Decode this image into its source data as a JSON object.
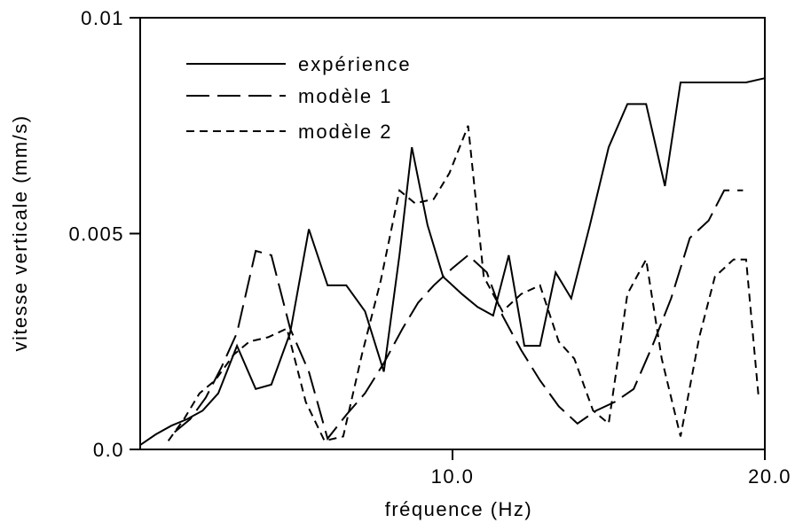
{
  "chart_data": {
    "type": "line",
    "xlabel": "fréquence (Hz)",
    "ylabel": "vitesse verticale (mm/s)",
    "xlim": [
      0.0,
      20.0
    ],
    "ylim": [
      0.0,
      0.01
    ],
    "x_ticks": [
      {
        "value": 10.0,
        "label": "10.0"
      },
      {
        "value": 20.0,
        "label": "20.0"
      }
    ],
    "y_ticks": [
      {
        "value": 0.0,
        "label": "0.0"
      },
      {
        "value": 0.005,
        "label": "0.005"
      },
      {
        "value": 0.01,
        "label": "0.01"
      }
    ],
    "grid": false,
    "legend_position": "top-left",
    "series": [
      {
        "name": "expérience",
        "dash": "solid",
        "x": [
          0.0,
          0.5,
          1.0,
          1.5,
          2.0,
          2.5,
          3.1,
          3.7,
          4.2,
          4.8,
          5.4,
          6.0,
          6.6,
          7.2,
          7.8,
          8.3,
          8.7,
          9.2,
          9.7,
          10.3,
          10.8,
          11.3,
          11.8,
          12.3,
          12.8,
          13.3,
          13.8,
          14.4,
          15.0,
          15.6,
          16.2,
          16.8,
          17.3,
          17.9,
          18.4,
          18.9,
          19.4,
          20.0
        ],
        "y": [
          0.0001,
          0.00035,
          0.00055,
          0.0007,
          0.0009,
          0.0013,
          0.0024,
          0.0014,
          0.0015,
          0.0027,
          0.0051,
          0.0038,
          0.0038,
          0.0032,
          0.0018,
          0.0045,
          0.007,
          0.0052,
          0.004,
          0.0036,
          0.0033,
          0.0031,
          0.0045,
          0.0024,
          0.0024,
          0.0041,
          0.0035,
          0.0052,
          0.007,
          0.008,
          0.008,
          0.0061,
          0.0085,
          0.0085,
          0.0085,
          0.0085,
          0.0085,
          0.0086
        ]
      },
      {
        "name": "modèle 1",
        "dash": "long",
        "x": [
          1.1,
          1.6,
          2.1,
          2.6,
          3.1,
          3.7,
          4.2,
          4.8,
          5.4,
          6.0,
          6.6,
          7.2,
          7.8,
          8.4,
          8.9,
          9.4,
          10.0,
          10.5,
          11.1,
          11.6,
          12.2,
          12.8,
          13.4,
          14.0,
          14.6,
          15.2,
          15.8,
          16.4,
          17.0,
          17.6,
          18.2,
          18.7,
          19.3
        ],
        "y": [
          0.0004,
          0.0007,
          0.0012,
          0.0019,
          0.0027,
          0.0046,
          0.0045,
          0.0028,
          0.0018,
          0.00025,
          0.0008,
          0.0013,
          0.002,
          0.0028,
          0.0034,
          0.0038,
          0.0042,
          0.0045,
          0.0041,
          0.0031,
          0.0023,
          0.0016,
          0.001,
          0.0006,
          0.0009,
          0.0011,
          0.0014,
          0.0024,
          0.0035,
          0.0049,
          0.0053,
          0.006,
          0.006
        ]
      },
      {
        "name": "modèle 2",
        "dash": "short",
        "x": [
          0.9,
          1.4,
          1.9,
          2.4,
          3.0,
          3.5,
          4.1,
          4.7,
          5.3,
          5.9,
          6.5,
          7.1,
          7.7,
          8.3,
          8.8,
          9.4,
          9.9,
          10.5,
          11.0,
          11.6,
          12.2,
          12.8,
          13.4,
          13.9,
          14.5,
          15.0,
          15.6,
          16.2,
          16.7,
          17.3,
          17.9,
          18.4,
          19.0,
          19.4,
          19.8
        ],
        "y": [
          0.0002,
          0.0007,
          0.0013,
          0.0016,
          0.0022,
          0.0025,
          0.0026,
          0.0028,
          0.0011,
          0.0002,
          0.0003,
          0.0022,
          0.0039,
          0.006,
          0.0057,
          0.0058,
          0.0064,
          0.0075,
          0.004,
          0.0032,
          0.0036,
          0.0038,
          0.0025,
          0.0021,
          0.0009,
          0.0006,
          0.0036,
          0.0044,
          0.0021,
          0.0003,
          0.0026,
          0.004,
          0.0044,
          0.0044,
          0.0012
        ]
      }
    ]
  }
}
